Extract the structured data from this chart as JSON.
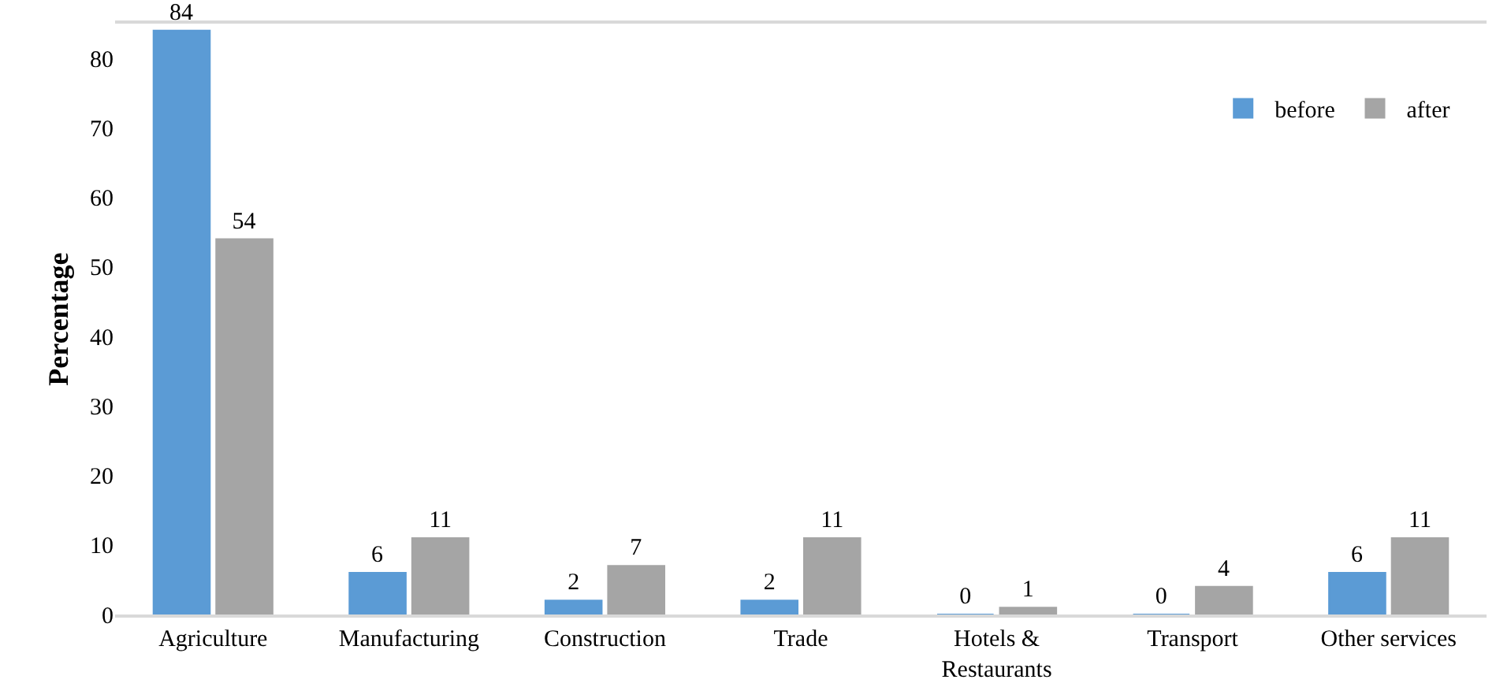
{
  "chart_data": {
    "type": "bar",
    "ylabel": "Percentage",
    "categories": [
      "Agriculture",
      "Manufacturing",
      "Construction",
      "Trade",
      "Hotels & Restaurants",
      "Transport",
      "Other services"
    ],
    "series": [
      {
        "name": "before",
        "color": "#5b9bd5",
        "values": [
          84,
          6,
          2,
          2,
          0,
          0,
          6
        ]
      },
      {
        "name": "after",
        "color": "#a5a5a5",
        "values": [
          54,
          11,
          7,
          11,
          1,
          4,
          11
        ]
      }
    ],
    "ylim": [
      0,
      85
    ],
    "yticks": [
      0,
      10,
      20,
      30,
      40,
      50,
      60,
      70,
      80
    ],
    "grid": false,
    "legend": "top right",
    "data_labels": true
  }
}
